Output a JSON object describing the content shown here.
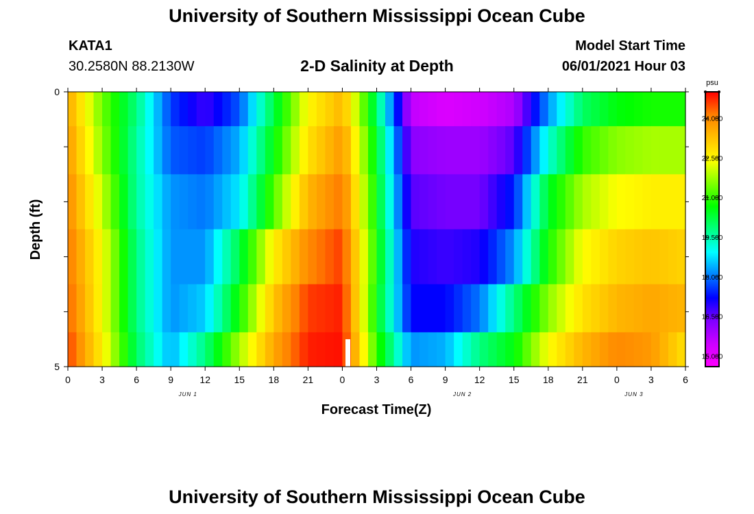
{
  "header": {
    "title": "University of Southern Mississippi Ocean Cube",
    "station_id": "KATA1",
    "station_coords": "30.2580N  88.2130W",
    "plot_title": "2-D Salinity at Depth",
    "model_start_label": "Model Start Time",
    "model_start_value": "06/01/2021 Hour 03",
    "footer_title": "University of Southern Mississippi Ocean Cube"
  },
  "chart_data": {
    "type": "heatmap",
    "title": "2-D Salinity at Depth",
    "xlabel": "Forecast Time(Z)",
    "ylabel": "Depth (ft)",
    "x_tick_labels": [
      "0",
      "3",
      "6",
      "9",
      "12",
      "15",
      "18",
      "21",
      "0",
      "3",
      "6",
      "9",
      "12",
      "15",
      "18",
      "21",
      "0",
      "3",
      "6"
    ],
    "date_labels": [
      {
        "label": "JUN 1",
        "tick_index": 3.5
      },
      {
        "label": "JUN 2",
        "tick_index": 11.5
      },
      {
        "label": "JUN 3",
        "tick_index": 16.5
      }
    ],
    "x_range_hours": [
      0,
      54
    ],
    "y_range_ft": [
      0,
      5
    ],
    "y_tick_labels": [
      "0",
      "5"
    ],
    "colorbar": {
      "unit": "psu",
      "range": [
        14.6,
        25.0
      ],
      "tick_labels": [
        "15.000",
        "16.500",
        "18.000",
        "19.500",
        "21.000",
        "22.500",
        "24.000"
      ],
      "tick_values": [
        15.0,
        16.5,
        18.0,
        19.5,
        21.0,
        22.5,
        24.0
      ],
      "colors": [
        "#ff00ff",
        "#cc00ff",
        "#8000ff",
        "#0000ff",
        "#0080ff",
        "#00ffff",
        "#00ff80",
        "#00ff00",
        "#80ff00",
        "#ffff00",
        "#ffc000",
        "#ff8000",
        "#ff0000"
      ]
    },
    "row_depths_ft": [
      0.25,
      1.0,
      2.0,
      3.0,
      4.0,
      4.75
    ],
    "anchor_hours": [
      0,
      3,
      6,
      9,
      12,
      15,
      18,
      21,
      24,
      27,
      30,
      33,
      36,
      39,
      42,
      45,
      48,
      51,
      54
    ],
    "salinity_rows": [
      [
        23.6,
        21.4,
        19.8,
        17.6,
        16.8,
        17.8,
        20.2,
        22.5,
        23.4,
        20.0,
        15.6,
        15.2,
        15.4,
        15.8,
        18.2,
        20.0,
        20.6,
        20.8,
        20.8
      ],
      [
        23.8,
        21.6,
        19.6,
        17.8,
        17.6,
        18.4,
        20.6,
        22.8,
        23.8,
        20.4,
        16.2,
        16.0,
        16.0,
        16.6,
        19.2,
        21.0,
        21.6,
        21.8,
        21.8
      ],
      [
        24.0,
        22.0,
        19.6,
        18.2,
        18.0,
        18.8,
        21.2,
        23.4,
        24.2,
        20.6,
        16.6,
        16.4,
        16.4,
        17.4,
        20.4,
        21.8,
        22.4,
        22.6,
        22.6
      ],
      [
        24.2,
        22.4,
        19.8,
        18.2,
        18.2,
        20.2,
        22.6,
        24.0,
        24.6,
        20.8,
        17.0,
        16.8,
        17.0,
        18.2,
        20.8,
        22.4,
        23.0,
        23.2,
        23.0
      ],
      [
        24.4,
        22.4,
        19.8,
        18.2,
        18.6,
        20.8,
        23.2,
        24.6,
        24.8,
        20.6,
        17.2,
        17.2,
        18.0,
        19.8,
        21.6,
        22.8,
        23.4,
        23.6,
        23.4
      ],
      [
        24.6,
        22.6,
        20.0,
        18.4,
        19.8,
        21.8,
        23.6,
        24.8,
        24.9,
        21.0,
        18.2,
        18.4,
        19.8,
        20.6,
        22.4,
        23.4,
        24.0,
        23.8,
        22.8
      ]
    ]
  }
}
